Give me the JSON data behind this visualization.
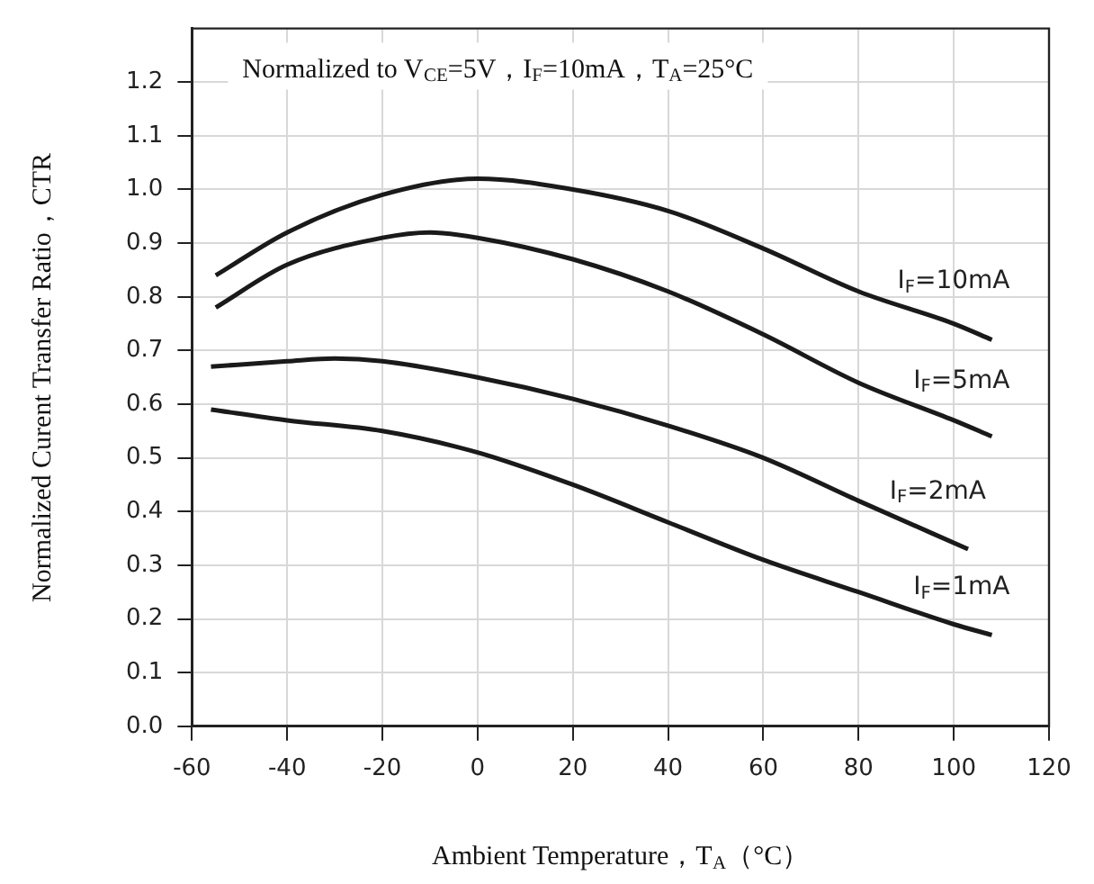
{
  "chart_data": {
    "type": "line",
    "xlabel": "Ambient Temperature，T$_{A}$（°C）",
    "ylabel": "Normalized Curent Transfer Ratio，CTR",
    "annotations": [
      "Normalized to V$_{CE}$=5V，I$_{F}$=10mA，T$_{A}$=25°C"
    ],
    "xlim": [
      -60,
      120
    ],
    "xticks": [
      -60,
      -40,
      -20,
      0,
      20,
      40,
      60,
      80,
      100,
      120
    ],
    "ylim": [
      0,
      1.3
    ],
    "yticks": [
      {
        "value": 0,
        "label": "0.0"
      },
      0.1,
      0.2,
      0.3,
      0.4,
      0.5,
      0.6,
      0.7,
      0.8,
      0.9,
      {
        "value": 1,
        "label": "1.0"
      },
      1.1,
      1.2
    ],
    "grid": true,
    "legend": false,
    "marker": "none",
    "line_style": "solid",
    "series": [
      {
        "name": "I$_{F}$=10mA",
        "color": "#1a1a1a",
        "x": [
          -55,
          -40,
          -20,
          0,
          20,
          40,
          60,
          80,
          100,
          108
        ],
        "values": [
          0.84,
          0.92,
          0.99,
          1.02,
          1.0,
          0.96,
          0.89,
          0.81,
          0.75,
          0.72
        ]
      },
      {
        "name": "I$_{F}$=5mA",
        "color": "#1a1a1a",
        "x": [
          -55,
          -40,
          -20,
          -10,
          0,
          20,
          40,
          60,
          80,
          100,
          108
        ],
        "values": [
          0.78,
          0.86,
          0.91,
          0.92,
          0.91,
          0.87,
          0.81,
          0.73,
          0.64,
          0.57,
          0.54
        ]
      },
      {
        "name": "I$_{F}$=2mA",
        "color": "#1a1a1a",
        "x": [
          -56,
          -40,
          -30,
          -20,
          0,
          20,
          40,
          60,
          80,
          103
        ],
        "values": [
          0.67,
          0.68,
          0.685,
          0.68,
          0.65,
          0.61,
          0.56,
          0.5,
          0.42,
          0.33
        ]
      },
      {
        "name": "I$_{F}$=1mA",
        "color": "#1a1a1a",
        "x": [
          -56,
          -40,
          -20,
          0,
          20,
          40,
          60,
          80,
          100,
          108
        ],
        "values": [
          0.59,
          0.57,
          0.55,
          0.51,
          0.45,
          0.38,
          0.31,
          0.25,
          0.19,
          0.17
        ]
      }
    ]
  }
}
